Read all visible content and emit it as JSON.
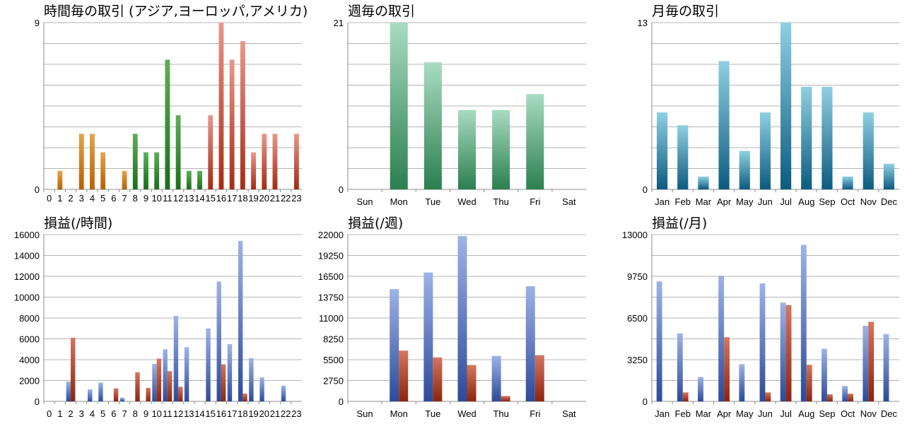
{
  "colors": {
    "grid": "#b4b4b4",
    "axis": "#8c8c8c",
    "orange_top": "#e6a24a",
    "orange_bot": "#b76000",
    "green_top": "#5cae5a",
    "green_bot": "#1a6e1a",
    "salmon_top": "#e8978a",
    "salmon_bot": "#a62a14",
    "mint_top": "#a8dcc1",
    "mint_bot": "#2b7f4f",
    "teal_top": "#8fd0e2",
    "teal_bot": "#0b5b80",
    "blue_top": "#9db3e6",
    "blue_bot": "#2b4a9a",
    "red_top": "#d4765e",
    "red_bot": "#8c240e"
  },
  "chart_data": [
    {
      "id": "hourly-trades",
      "type": "bar",
      "title": "時間毎の取引 (アジア,ヨーロッパ,アメリカ)",
      "categories": [
        "0",
        "1",
        "2",
        "3",
        "4",
        "5",
        "6",
        "7",
        "8",
        "9",
        "10",
        "11",
        "12",
        "13",
        "14",
        "15",
        "16",
        "17",
        "18",
        "19",
        "20",
        "21",
        "22",
        "23"
      ],
      "values": [
        0,
        1,
        0,
        3,
        3,
        2,
        0,
        1,
        3,
        2,
        2,
        7,
        4,
        1,
        1,
        4,
        9,
        7,
        8,
        2,
        3,
        3,
        0,
        3
      ],
      "bar_colors": [
        "orange",
        "orange",
        "orange",
        "orange",
        "orange",
        "orange",
        "orange",
        "orange",
        "green",
        "green",
        "green",
        "green",
        "green",
        "green",
        "green",
        "salmon",
        "salmon",
        "salmon",
        "salmon",
        "salmon",
        "salmon",
        "salmon",
        "salmon",
        "salmon"
      ],
      "ylim": [
        0,
        9
      ],
      "yticks": [
        "0",
        "9"
      ],
      "grid_lines": 8
    },
    {
      "id": "weekly-trades",
      "type": "bar",
      "title": "週毎の取引",
      "categories": [
        "Sun",
        "Mon",
        "Tue",
        "Wed",
        "Thu",
        "Fri",
        "Sat"
      ],
      "values": [
        0,
        21,
        16,
        10,
        10,
        12,
        0
      ],
      "bar_colors": [
        "mint",
        "mint",
        "mint",
        "mint",
        "mint",
        "mint",
        "mint"
      ],
      "ylim": [
        0,
        21
      ],
      "yticks": [
        "0",
        "21"
      ],
      "grid_lines": 8
    },
    {
      "id": "monthly-trades",
      "type": "bar",
      "title": "月毎の取引",
      "categories": [
        "Jan",
        "Feb",
        "Mar",
        "Apr",
        "May",
        "Jun",
        "Jul",
        "Aug",
        "Sep",
        "Oct",
        "Nov",
        "Dec"
      ],
      "values": [
        6,
        5,
        1,
        10,
        3,
        6,
        13,
        8,
        8,
        1,
        6,
        2
      ],
      "bar_colors": [
        "teal",
        "teal",
        "teal",
        "teal",
        "teal",
        "teal",
        "teal",
        "teal",
        "teal",
        "teal",
        "teal",
        "teal"
      ],
      "ylim": [
        0,
        13
      ],
      "yticks": [
        "0",
        "13"
      ],
      "grid_lines": 8
    },
    {
      "id": "hourly-pnl",
      "type": "bar",
      "title": "損益(/時間)",
      "categories": [
        "0",
        "1",
        "2",
        "3",
        "4",
        "5",
        "6",
        "7",
        "8",
        "9",
        "10",
        "11",
        "12",
        "13",
        "14",
        "15",
        "16",
        "17",
        "18",
        "19",
        "20",
        "21",
        "22",
        "23"
      ],
      "series": [
        {
          "color": "blue",
          "values": [
            0,
            0,
            1900,
            0,
            1150,
            1800,
            0,
            350,
            0,
            0,
            3600,
            5000,
            8200,
            5200,
            0,
            7000,
            11500,
            5500,
            15400,
            4150,
            2300,
            0,
            1500,
            0
          ]
        },
        {
          "color": "red",
          "values": [
            0,
            0,
            6100,
            0,
            0,
            0,
            1250,
            0,
            2800,
            1300,
            4100,
            2900,
            1400,
            0,
            0,
            0,
            3550,
            0,
            750,
            0,
            0,
            0,
            0,
            0
          ]
        }
      ],
      "ylim": [
        0,
        16000
      ],
      "yticks": [
        "0",
        "2000",
        "4000",
        "6000",
        "8000",
        "10000",
        "12000",
        "14000",
        "16000"
      ],
      "grid_lines": 8
    },
    {
      "id": "weekly-pnl",
      "type": "bar",
      "title": "損益(/週)",
      "categories": [
        "Sun",
        "Mon",
        "Tue",
        "Wed",
        "Thu",
        "Fri",
        "Sat"
      ],
      "series": [
        {
          "color": "blue",
          "values": [
            0,
            14800,
            17000,
            21800,
            6000,
            15200,
            0
          ]
        },
        {
          "color": "red",
          "values": [
            0,
            6700,
            5800,
            4800,
            700,
            6100,
            0
          ]
        }
      ],
      "ylim": [
        0,
        22000
      ],
      "yticks": [
        "0",
        "2750",
        "5500",
        "8250",
        "11000",
        "13750",
        "16500",
        "19250",
        "22000"
      ],
      "grid_lines": 8
    },
    {
      "id": "monthly-pnl",
      "type": "bar",
      "title": "損益(/月)",
      "categories": [
        "Jan",
        "Feb",
        "Mar",
        "Apr",
        "May",
        "Jun",
        "Jul",
        "Aug",
        "Sep",
        "Oct",
        "Nov",
        "Dec"
      ],
      "series": [
        {
          "color": "blue",
          "values": [
            9350,
            5300,
            1900,
            9800,
            2900,
            9200,
            7700,
            12200,
            4100,
            1200,
            5900,
            5250
          ]
        },
        {
          "color": "red",
          "values": [
            0,
            700,
            0,
            5000,
            0,
            700,
            7500,
            2850,
            550,
            600,
            6200,
            0
          ]
        }
      ],
      "ylim": [
        0,
        13000
      ],
      "yticks": [
        "0",
        "3250",
        "6500",
        "9750",
        "13000"
      ],
      "grid_lines": 8
    }
  ]
}
